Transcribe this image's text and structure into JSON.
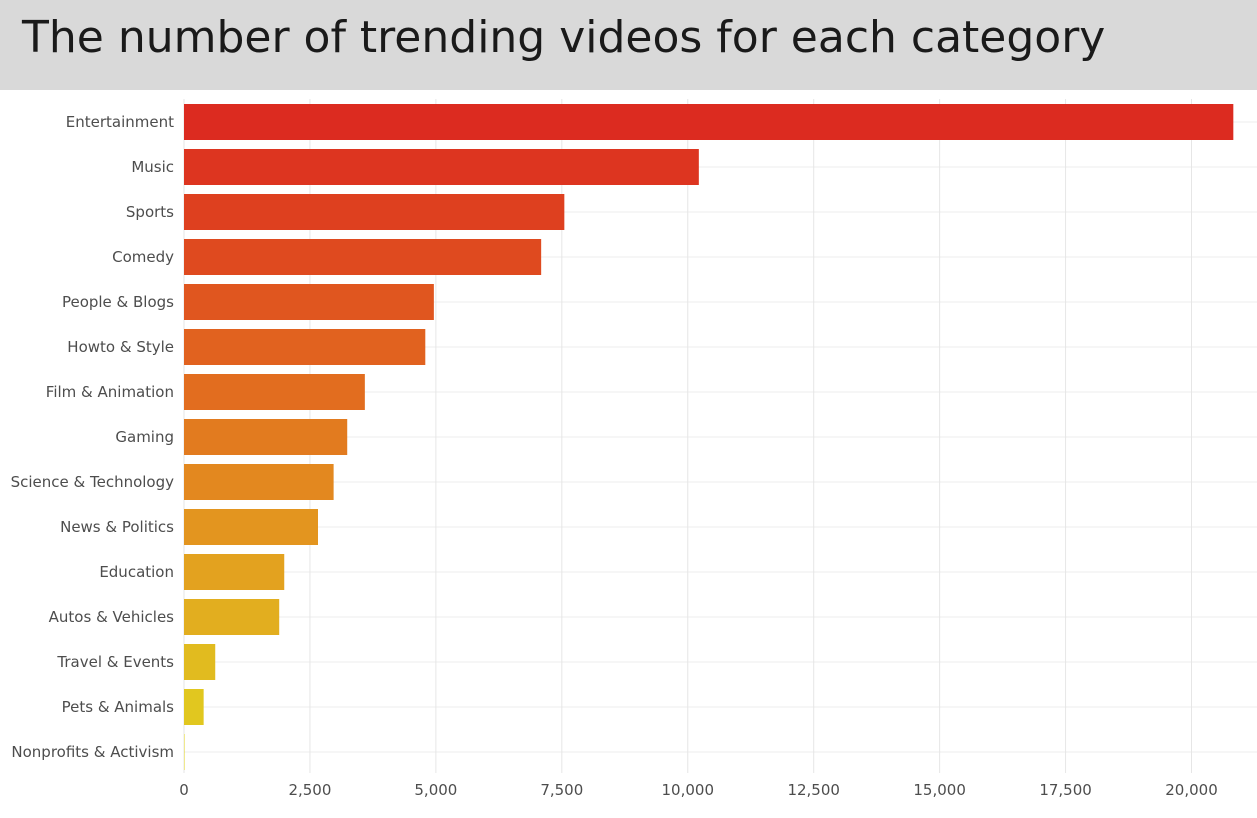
{
  "chart_data": {
    "type": "bar",
    "orientation": "horizontal",
    "title": "The number of trending videos for each category",
    "xlabel": "",
    "ylabel": "",
    "xlim": [
      0,
      21300
    ],
    "grid": true,
    "xticks": [
      0,
      2500,
      5000,
      7500,
      10000,
      12500,
      15000,
      17500,
      20000
    ],
    "xtick_labels": [
      "0",
      "2,500",
      "5,000",
      "7,500",
      "10,000",
      "12,500",
      "15,000",
      "17,500",
      "20,000"
    ],
    "categories": [
      "Entertainment",
      "Music",
      "Sports",
      "Comedy",
      "People & Blogs",
      "Howto & Style",
      "Film & Animation",
      "Gaming",
      "Science & Technology",
      "News & Politics",
      "Education",
      "Autos & Vehicles",
      "Travel & Events",
      "Pets & Animals",
      "Nonprofits & Activism"
    ],
    "values": [
      20830,
      10220,
      7550,
      7090,
      4960,
      4790,
      3590,
      3240,
      2970,
      2660,
      1990,
      1890,
      620,
      390,
      10
    ],
    "colors": [
      "#dc2b20",
      "#dd3520",
      "#de401f",
      "#df4a1f",
      "#e0561f",
      "#e1621f",
      "#e26d1f",
      "#e27b1f",
      "#e3881f",
      "#e3951f",
      "#e3a21f",
      "#e2ae1f",
      "#e1bb1f",
      "#e1c71f",
      "#e0d31f"
    ]
  }
}
